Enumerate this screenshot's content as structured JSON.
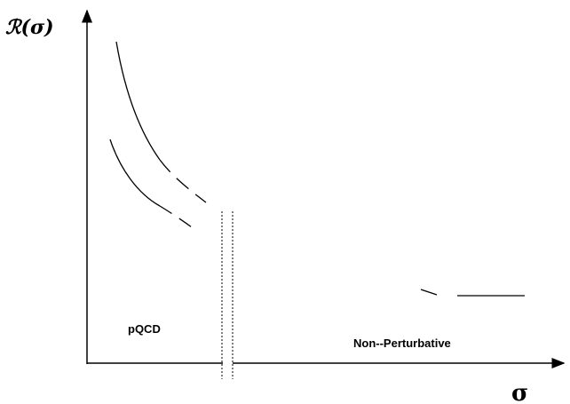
{
  "y_axis_label": "ℛ(σ)",
  "x_axis_label": "σ",
  "region_left_label": "pQCD",
  "region_right_label": "Non--Perturbative",
  "line_color": "#000000"
}
